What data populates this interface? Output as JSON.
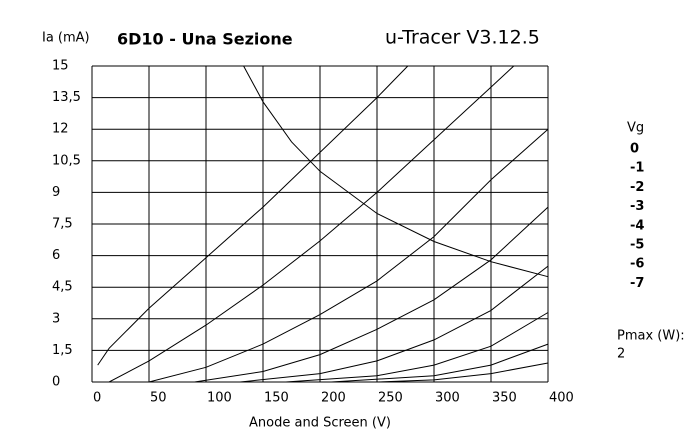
{
  "chart_data": {
    "type": "line",
    "title": "6D10 - Una Sezione",
    "subtitle": "u-Tracer V3.12.5",
    "y_label": "Ia (mA)",
    "x_label": "Anode and Screen (V)",
    "legend_title": "Vg",
    "pmax_label": "Pmax (W):",
    "pmax": 2,
    "xlim": [
      0,
      400
    ],
    "ylim": [
      0,
      15
    ],
    "xticks": [
      0,
      50,
      100,
      150,
      200,
      250,
      300,
      350,
      400
    ],
    "yticks": [
      0,
      {
        "value": 1.5,
        "label": "1,5"
      },
      3,
      {
        "value": 4.5,
        "label": "4,5"
      },
      6,
      {
        "value": 7.5,
        "label": "7,5"
      },
      9,
      {
        "value": 10.5,
        "label": "10,5"
      },
      12,
      {
        "value": 13.5,
        "label": "13,5"
      },
      15
    ],
    "grid": true,
    "color": "#000000",
    "series": [
      {
        "name": "0",
        "x": [
          5,
          15,
          50,
          100,
          150,
          200,
          250,
          277
        ],
        "values": [
          0.8,
          1.6,
          3.5,
          5.9,
          8.3,
          10.9,
          13.5,
          15
        ]
      },
      {
        "name": "-1",
        "x": [
          15,
          50,
          100,
          150,
          200,
          250,
          300,
          350,
          370
        ],
        "values": [
          0,
          1.0,
          2.7,
          4.6,
          6.7,
          9.0,
          11.5,
          14.0,
          15
        ]
      },
      {
        "name": "-2",
        "x": [
          50,
          100,
          150,
          200,
          250,
          300,
          350,
          400
        ],
        "values": [
          0,
          0.7,
          1.8,
          3.2,
          4.8,
          6.9,
          9.6,
          12.0
        ]
      },
      {
        "name": "-3",
        "x": [
          90,
          150,
          200,
          250,
          300,
          350,
          400
        ],
        "values": [
          0,
          0.5,
          1.3,
          2.5,
          3.9,
          5.8,
          8.3
        ]
      },
      {
        "name": "-4",
        "x": [
          130,
          200,
          250,
          300,
          350,
          400
        ],
        "values": [
          0,
          0.4,
          1.0,
          2.0,
          3.4,
          5.5
        ]
      },
      {
        "name": "-5",
        "x": [
          170,
          250,
          300,
          350,
          400
        ],
        "values": [
          0,
          0.3,
          0.8,
          1.7,
          3.3
        ]
      },
      {
        "name": "-6",
        "x": [
          210,
          300,
          350,
          400
        ],
        "values": [
          0,
          0.3,
          0.8,
          1.8
        ]
      },
      {
        "name": "-7",
        "x": [
          250,
          300,
          350,
          400
        ],
        "values": [
          0,
          0.1,
          0.4,
          0.9
        ]
      }
    ],
    "power_curve": {
      "x": [
        133,
        150,
        175,
        200,
        250,
        300,
        350,
        400
      ],
      "values": [
        15,
        13.3,
        11.4,
        10,
        8,
        6.67,
        5.71,
        5
      ]
    }
  }
}
